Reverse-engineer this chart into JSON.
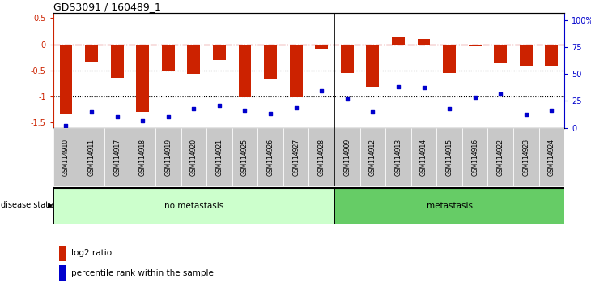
{
  "title": "GDS3091 / 160489_1",
  "samples": [
    "GSM114910",
    "GSM114911",
    "GSM114917",
    "GSM114918",
    "GSM114919",
    "GSM114920",
    "GSM114921",
    "GSM114925",
    "GSM114926",
    "GSM114927",
    "GSM114928",
    "GSM114909",
    "GSM114912",
    "GSM114913",
    "GSM114914",
    "GSM114915",
    "GSM114916",
    "GSM114922",
    "GSM114923",
    "GSM114924"
  ],
  "log2_ratio": [
    -1.35,
    -0.35,
    -0.65,
    -1.3,
    -0.5,
    -0.57,
    -0.3,
    -1.02,
    -0.68,
    -1.01,
    -0.1,
    -0.55,
    -0.82,
    0.14,
    0.1,
    -0.55,
    -0.04,
    -0.37,
    -0.42,
    -0.42
  ],
  "percentile": [
    2,
    14,
    10,
    6,
    10,
    17,
    20,
    16,
    13,
    18,
    33,
    26,
    14,
    37,
    36,
    17,
    27,
    30,
    12,
    16
  ],
  "no_metastasis_count": 11,
  "metastasis_count": 9,
  "ylim_left": [
    -1.6,
    0.6
  ],
  "bar_color": "#cc2200",
  "dot_color": "#0000cc",
  "no_metastasis_color": "#ccffcc",
  "metastasis_color": "#66cc66",
  "hline0_color": "#cc0000",
  "hgrid_color": "black",
  "left_yticks": [
    -1.5,
    -1.0,
    -0.5,
    0.0,
    0.5
  ],
  "left_yticklabels": [
    "-1.5",
    "-1",
    "-0.5",
    "0",
    "0.5"
  ],
  "right_yticks_pct": [
    0,
    25,
    50,
    75,
    100
  ],
  "right_yticklabels": [
    "0",
    "25",
    "50",
    "75",
    "100%"
  ],
  "title_fontsize": 9,
  "tick_fontsize": 7,
  "label_fontsize": 7.5,
  "sample_fontsize": 5.5,
  "disease_fontsize": 7
}
